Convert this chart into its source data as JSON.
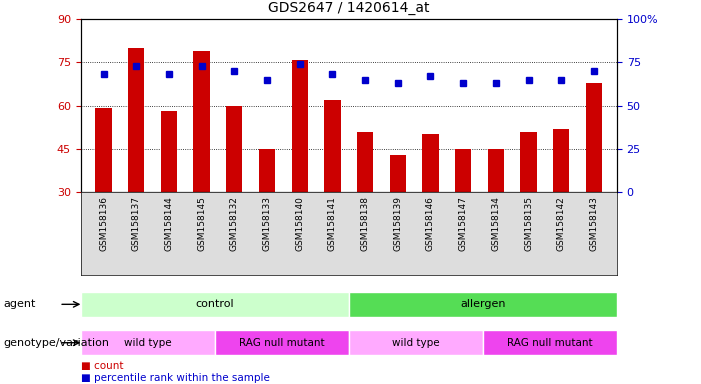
{
  "title": "GDS2647 / 1420614_at",
  "samples": [
    "GSM158136",
    "GSM158137",
    "GSM158144",
    "GSM158145",
    "GSM158132",
    "GSM158133",
    "GSM158140",
    "GSM158141",
    "GSM158138",
    "GSM158139",
    "GSM158146",
    "GSM158147",
    "GSM158134",
    "GSM158135",
    "GSM158142",
    "GSM158143"
  ],
  "bar_values": [
    59,
    80,
    58,
    79,
    60,
    45,
    76,
    62,
    51,
    43,
    50,
    45,
    45,
    51,
    52,
    68
  ],
  "dot_values": [
    68,
    73,
    68,
    73,
    70,
    65,
    74,
    68,
    65,
    63,
    67,
    63,
    63,
    65,
    65,
    70
  ],
  "bar_color": "#cc0000",
  "dot_color": "#0000cc",
  "ylim_left": [
    30,
    90
  ],
  "ylim_right": [
    0,
    100
  ],
  "yticks_left": [
    30,
    45,
    60,
    75,
    90
  ],
  "yticks_right": [
    0,
    25,
    50,
    75,
    100
  ],
  "yticklabels_right": [
    "0",
    "25",
    "50",
    "75",
    "100%"
  ],
  "grid_values": [
    45,
    60,
    75
  ],
  "agent_groups": [
    {
      "label": "control",
      "start": 0,
      "end": 8,
      "color": "#ccffcc"
    },
    {
      "label": "allergen",
      "start": 8,
      "end": 16,
      "color": "#55dd55"
    }
  ],
  "genotype_groups": [
    {
      "label": "wild type",
      "start": 0,
      "end": 4,
      "color": "#ffaaff"
    },
    {
      "label": "RAG null mutant",
      "start": 4,
      "end": 8,
      "color": "#ee44ee"
    },
    {
      "label": "wild type",
      "start": 8,
      "end": 12,
      "color": "#ffaaff"
    },
    {
      "label": "RAG null mutant",
      "start": 12,
      "end": 16,
      "color": "#ee44ee"
    }
  ],
  "legend_items": [
    {
      "label": "count",
      "color": "#cc0000"
    },
    {
      "label": "percentile rank within the sample",
      "color": "#0000cc"
    }
  ],
  "left_labels": [
    "agent",
    "genotype/variation"
  ],
  "tick_color_left": "#cc0000",
  "tick_color_right": "#0000cc",
  "sample_bg_color": "#dddddd"
}
